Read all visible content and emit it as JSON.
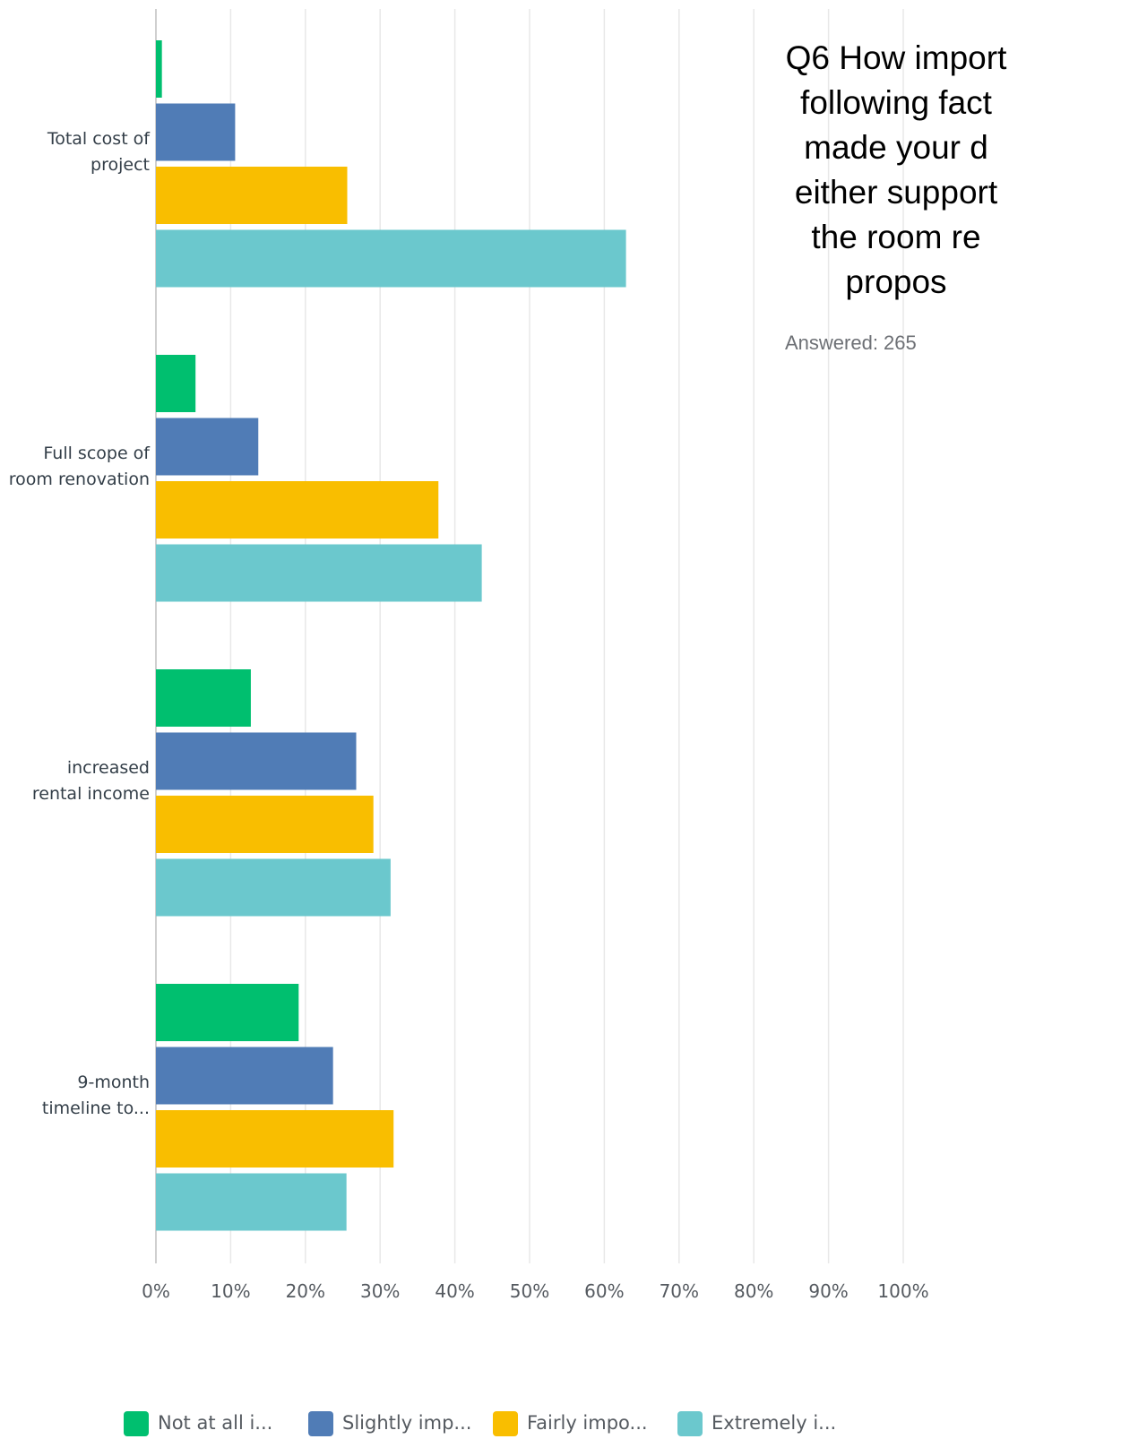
{
  "chart_data": {
    "type": "bar",
    "orientation": "horizontal",
    "title_lines": [
      "Q6 How import",
      "following fact",
      "made your d",
      "either support",
      "the room re",
      "propos"
    ],
    "answered": "Answered: 265",
    "categories": [
      [
        "Total cost of",
        "project"
      ],
      [
        "Full scope of",
        "room renovation"
      ],
      [
        "increased",
        "rental income"
      ],
      [
        "9-month",
        "timeline to..."
      ]
    ],
    "series": [
      {
        "name": "Not at all i...",
        "color": "#00bf6f",
        "values": [
          0.8,
          5.3,
          12.7,
          19.1
        ]
      },
      {
        "name": "Slightly imp...",
        "color": "#507cb6",
        "values": [
          10.6,
          13.7,
          26.8,
          23.7
        ]
      },
      {
        "name": "Fairly impo...",
        "color": "#f9be00",
        "values": [
          25.6,
          37.8,
          29.1,
          31.8
        ]
      },
      {
        "name": "Extremely i...",
        "color": "#6bc8cd",
        "values": [
          62.9,
          43.6,
          31.4,
          25.5
        ]
      }
    ],
    "xlim": [
      0,
      100
    ],
    "xticks": [
      "0%",
      "10%",
      "20%",
      "30%",
      "40%",
      "50%",
      "60%",
      "70%",
      "80%",
      "90%",
      "100%"
    ],
    "grid": true,
    "legend_position": "bottom"
  }
}
